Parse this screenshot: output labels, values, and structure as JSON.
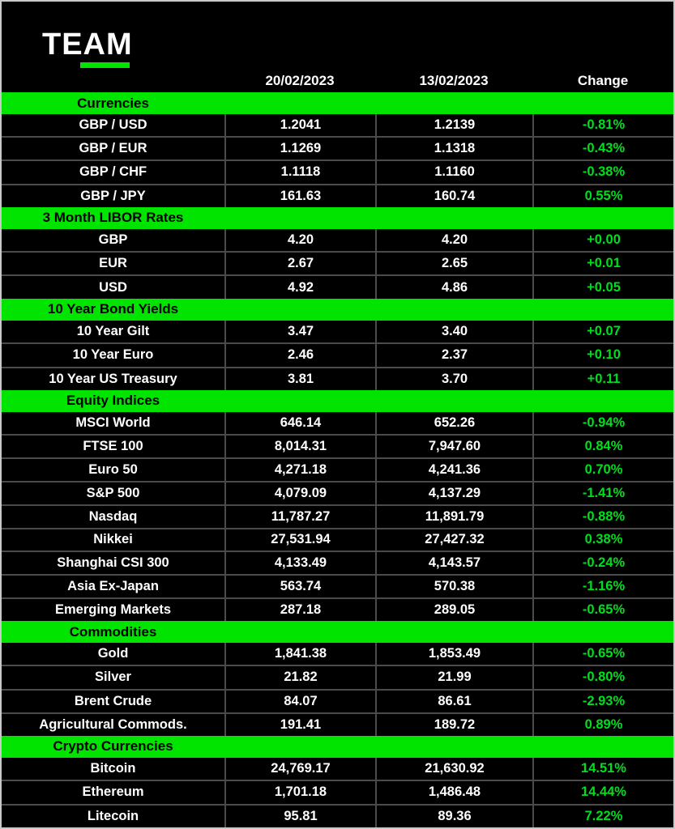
{
  "colors": {
    "accent_green": "#00E400",
    "change_green": "#00DE1E",
    "background": "#000000",
    "text_white": "#FFFFFF",
    "divider_gray": "#4B4B4B",
    "border_gray": "#C9C9C9"
  },
  "logo": {
    "text": "TEAM"
  },
  "chart_data": {
    "type": "table",
    "columns": [
      "",
      "20/02/2023",
      "13/02/2023",
      "Change"
    ],
    "legend_position": "none",
    "sections": [
      {
        "title": "Currencies",
        "rows": [
          {
            "label": "GBP / USD",
            "v1": "1.2041",
            "v2": "1.2139",
            "change": "-0.81%"
          },
          {
            "label": "GBP / EUR",
            "v1": "1.1269",
            "v2": "1.1318",
            "change": "-0.43%"
          },
          {
            "label": "GBP / CHF",
            "v1": "1.1118",
            "v2": "1.1160",
            "change": "-0.38%"
          },
          {
            "label": "GBP / JPY",
            "v1": "161.63",
            "v2": "160.74",
            "change": "0.55%"
          }
        ]
      },
      {
        "title": "3 Month LIBOR Rates",
        "rows": [
          {
            "label": "GBP",
            "v1": "4.20",
            "v2": "4.20",
            "change": "+0.00"
          },
          {
            "label": "EUR",
            "v1": "2.67",
            "v2": "2.65",
            "change": "+0.01"
          },
          {
            "label": "USD",
            "v1": "4.92",
            "v2": "4.86",
            "change": "+0.05"
          }
        ]
      },
      {
        "title": "10 Year Bond Yields",
        "rows": [
          {
            "label": "10 Year Gilt",
            "v1": "3.47",
            "v2": "3.40",
            "change": "+0.07"
          },
          {
            "label": "10 Year Euro",
            "v1": "2.46",
            "v2": "2.37",
            "change": "+0.10"
          },
          {
            "label": "10 Year US Treasury",
            "v1": "3.81",
            "v2": "3.70",
            "change": "+0.11"
          }
        ]
      },
      {
        "title": "Equity Indices",
        "rows": [
          {
            "label": "MSCI World",
            "v1": "646.14",
            "v2": "652.26",
            "change": "-0.94%"
          },
          {
            "label": "FTSE 100",
            "v1": "8,014.31",
            "v2": "7,947.60",
            "change": "0.84%"
          },
          {
            "label": "Euro 50",
            "v1": "4,271.18",
            "v2": "4,241.36",
            "change": "0.70%"
          },
          {
            "label": "S&P 500",
            "v1": "4,079.09",
            "v2": "4,137.29",
            "change": "-1.41%"
          },
          {
            "label": "Nasdaq",
            "v1": "11,787.27",
            "v2": "11,891.79",
            "change": "-0.88%"
          },
          {
            "label": "Nikkei",
            "v1": "27,531.94",
            "v2": "27,427.32",
            "change": "0.38%"
          },
          {
            "label": "Shanghai CSI 300",
            "v1": "4,133.49",
            "v2": "4,143.57",
            "change": "-0.24%"
          },
          {
            "label": "Asia Ex-Japan",
            "v1": "563.74",
            "v2": "570.38",
            "change": "-1.16%"
          },
          {
            "label": "Emerging Markets",
            "v1": "287.18",
            "v2": "289.05",
            "change": "-0.65%"
          }
        ]
      },
      {
        "title": "Commodities",
        "rows": [
          {
            "label": "Gold",
            "v1": "1,841.38",
            "v2": "1,853.49",
            "change": "-0.65%"
          },
          {
            "label": "Silver",
            "v1": "21.82",
            "v2": "21.99",
            "change": "-0.80%"
          },
          {
            "label": "Brent Crude",
            "v1": "84.07",
            "v2": "86.61",
            "change": "-2.93%"
          },
          {
            "label": "Agricultural Commods.",
            "v1": "191.41",
            "v2": "189.72",
            "change": "0.89%"
          }
        ]
      },
      {
        "title": "Crypto Currencies",
        "rows": [
          {
            "label": "Bitcoin",
            "v1": "24,769.17",
            "v2": "21,630.92",
            "change": "14.51%"
          },
          {
            "label": "Ethereum",
            "v1": "1,701.18",
            "v2": "1,486.48",
            "change": "14.44%"
          },
          {
            "label": "Litecoin",
            "v1": "95.81",
            "v2": "89.36",
            "change": "7.22%"
          }
        ]
      }
    ]
  }
}
